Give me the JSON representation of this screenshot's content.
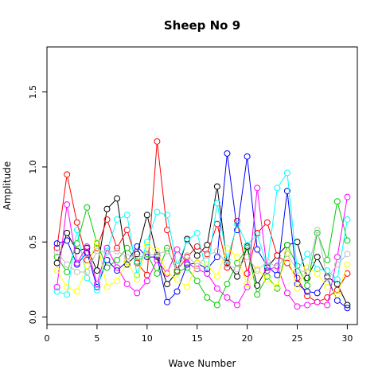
{
  "chart_data": {
    "type": "line",
    "title": "Sheep No 9",
    "xlabel": "Wave Number",
    "ylabel": "Amplitude",
    "xlim": [
      0,
      31
    ],
    "ylim": [
      -0.05,
      1.8
    ],
    "x_ticks": [
      0,
      5,
      10,
      15,
      20,
      25,
      30
    ],
    "y_ticks": [
      0.0,
      0.5,
      1.0,
      1.5
    ],
    "grid": false,
    "legend": "none",
    "marker": "open-circle",
    "x": [
      1,
      2,
      3,
      4,
      5,
      6,
      7,
      8,
      9,
      10,
      11,
      12,
      13,
      14,
      15,
      16,
      17,
      18,
      19,
      20,
      21,
      22,
      23,
      24,
      25,
      26,
      27,
      28,
      29,
      30
    ],
    "series": [
      {
        "color": "#000000",
        "values": [
          0.36,
          0.56,
          0.44,
          0.46,
          0.31,
          0.72,
          0.79,
          0.35,
          0.42,
          0.68,
          0.41,
          0.22,
          0.3,
          0.52,
          0.41,
          0.48,
          0.87,
          0.36,
          0.27,
          0.47,
          0.21,
          0.33,
          0.41,
          0.48,
          0.5,
          0.26,
          0.4,
          0.27,
          0.22,
          0.08
        ]
      },
      {
        "color": "#ff0000",
        "values": [
          0.46,
          0.95,
          0.63,
          0.38,
          0.46,
          0.65,
          0.46,
          0.58,
          0.36,
          0.28,
          1.17,
          0.58,
          0.31,
          0.4,
          0.47,
          0.42,
          0.62,
          0.33,
          0.64,
          0.29,
          0.56,
          0.63,
          0.41,
          0.36,
          0.26,
          0.14,
          0.1,
          0.13,
          0.18,
          0.29
        ]
      },
      {
        "color": "#00cd00",
        "values": [
          0.4,
          0.3,
          0.49,
          0.73,
          0.49,
          0.33,
          0.38,
          0.46,
          0.37,
          0.42,
          0.29,
          0.46,
          0.3,
          0.33,
          0.24,
          0.13,
          0.08,
          0.22,
          0.36,
          0.46,
          0.15,
          0.27,
          0.19,
          0.48,
          0.34,
          0.21,
          0.56,
          0.38,
          0.77,
          0.51
        ]
      },
      {
        "color": "#0000ff",
        "values": [
          0.49,
          0.51,
          0.35,
          0.43,
          0.2,
          0.38,
          0.31,
          0.37,
          0.47,
          0.4,
          0.4,
          0.1,
          0.17,
          0.35,
          0.36,
          0.32,
          0.4,
          1.09,
          0.58,
          1.07,
          0.45,
          0.34,
          0.28,
          0.84,
          0.22,
          0.17,
          0.16,
          0.26,
          0.11,
          0.06
        ]
      },
      {
        "color": "#00ffff",
        "values": [
          0.17,
          0.15,
          0.58,
          0.26,
          0.18,
          0.44,
          0.65,
          0.68,
          0.28,
          0.5,
          0.7,
          0.68,
          0.34,
          0.51,
          0.56,
          0.29,
          0.76,
          0.38,
          0.62,
          0.48,
          0.55,
          0.34,
          0.86,
          0.96,
          0.31,
          0.42,
          0.32,
          0.31,
          0.25,
          0.65
        ]
      },
      {
        "color": "#ff00ff",
        "values": [
          0.2,
          0.75,
          0.36,
          0.47,
          0.22,
          0.46,
          0.33,
          0.22,
          0.16,
          0.24,
          0.38,
          0.29,
          0.45,
          0.36,
          0.32,
          0.29,
          0.19,
          0.13,
          0.08,
          0.2,
          0.86,
          0.31,
          0.34,
          0.16,
          0.07,
          0.08,
          0.1,
          0.08,
          0.4,
          0.8
        ]
      },
      {
        "color": "#ffff00",
        "values": [
          0.31,
          0.2,
          0.17,
          0.34,
          0.5,
          0.2,
          0.24,
          0.37,
          0.25,
          0.48,
          0.44,
          0.3,
          0.25,
          0.2,
          0.36,
          0.35,
          0.27,
          0.46,
          0.4,
          0.22,
          0.32,
          0.25,
          0.2,
          0.43,
          0.19,
          0.33,
          0.29,
          0.2,
          0.15,
          0.35
        ]
      },
      {
        "color": "#bebebe",
        "values": [
          0.43,
          0.35,
          0.3,
          0.3,
          0.44,
          0.43,
          0.44,
          0.4,
          0.4,
          0.41,
          0.42,
          0.44,
          0.34,
          0.41,
          0.34,
          0.41,
          0.44,
          0.35,
          0.32,
          0.4,
          0.31,
          0.37,
          0.33,
          0.42,
          0.31,
          0.3,
          0.58,
          0.26,
          0.35,
          0.42
        ]
      }
    ]
  }
}
